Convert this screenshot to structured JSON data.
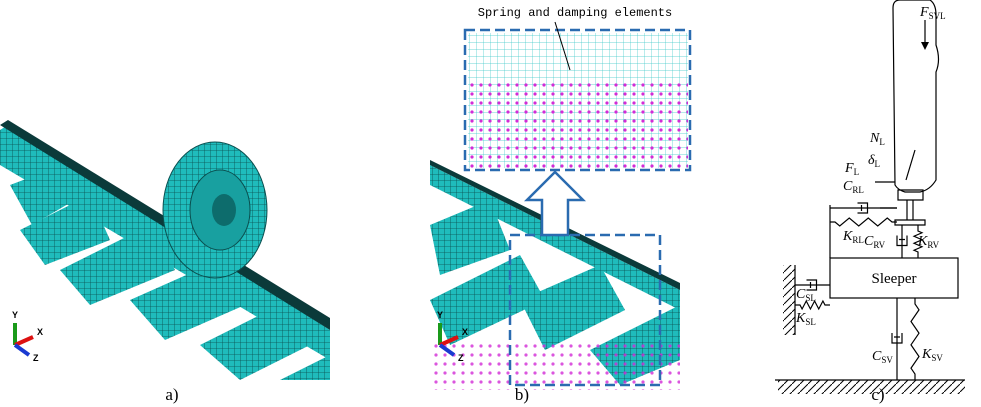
{
  "panels": [
    {
      "label": "a)",
      "axes": [
        "Y",
        "X",
        "Z"
      ]
    },
    {
      "label": "b)",
      "callout": "Spring and damping elements",
      "axes": [
        "Y",
        "X",
        "Z"
      ]
    },
    {
      "label": "c)",
      "block": "Sleeper",
      "symbols": [
        {
          "main": "F",
          "sub": "SVL"
        },
        {
          "main": "N",
          "sub": "L"
        },
        {
          "main": "F",
          "sub": "L"
        },
        {
          "main": "δ",
          "sub": "L"
        },
        {
          "main": "C",
          "sub": "RL"
        },
        {
          "main": "K",
          "sub": "RL"
        },
        {
          "main": "C",
          "sub": "RV"
        },
        {
          "main": "K",
          "sub": "RV"
        },
        {
          "main": "C",
          "sub": "SL"
        },
        {
          "main": "K",
          "sub": "SL"
        },
        {
          "main": "C",
          "sub": "SV"
        },
        {
          "main": "K",
          "sub": "SV"
        }
      ]
    }
  ]
}
